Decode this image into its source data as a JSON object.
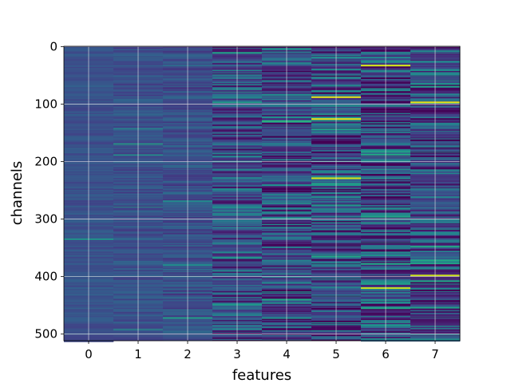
{
  "chart_data": {
    "type": "heatmap",
    "colormap": "viridis",
    "xlabel": "features",
    "ylabel": "channels",
    "x_ticks": [
      "0",
      "1",
      "2",
      "3",
      "4",
      "5",
      "6",
      "7"
    ],
    "y_ticks": [
      "0",
      "100",
      "200",
      "300",
      "400",
      "500"
    ],
    "columns": 8,
    "rows": 512,
    "xlim": [
      -0.5,
      7.5
    ],
    "ylim": [
      511.5,
      -0.5
    ],
    "y_inverted": true,
    "grid": true,
    "column_variability": [
      0.05,
      0.07,
      0.09,
      0.2,
      0.24,
      0.26,
      0.26,
      0.22
    ],
    "highlights": [
      {
        "feature": 5,
        "channel": 88,
        "color": "#e7e419"
      },
      {
        "feature": 5,
        "channel": 126,
        "color": "#e7e419"
      },
      {
        "feature": 5,
        "channel": 229,
        "color": "#d8e219"
      },
      {
        "feature": 6,
        "channel": 33,
        "color": "#dde318"
      },
      {
        "feature": 6,
        "channel": 420,
        "color": "#c8e020"
      },
      {
        "feature": 7,
        "channel": 97,
        "color": "#e7e419"
      },
      {
        "feature": 7,
        "channel": 398,
        "color": "#c8e020"
      },
      {
        "feature": 4,
        "channel": 130,
        "color": "#2cb17e"
      },
      {
        "feature": 4,
        "channel": 440,
        "color": "#22a785"
      },
      {
        "feature": 6,
        "channel": 455,
        "color": "#22a785"
      }
    ]
  }
}
